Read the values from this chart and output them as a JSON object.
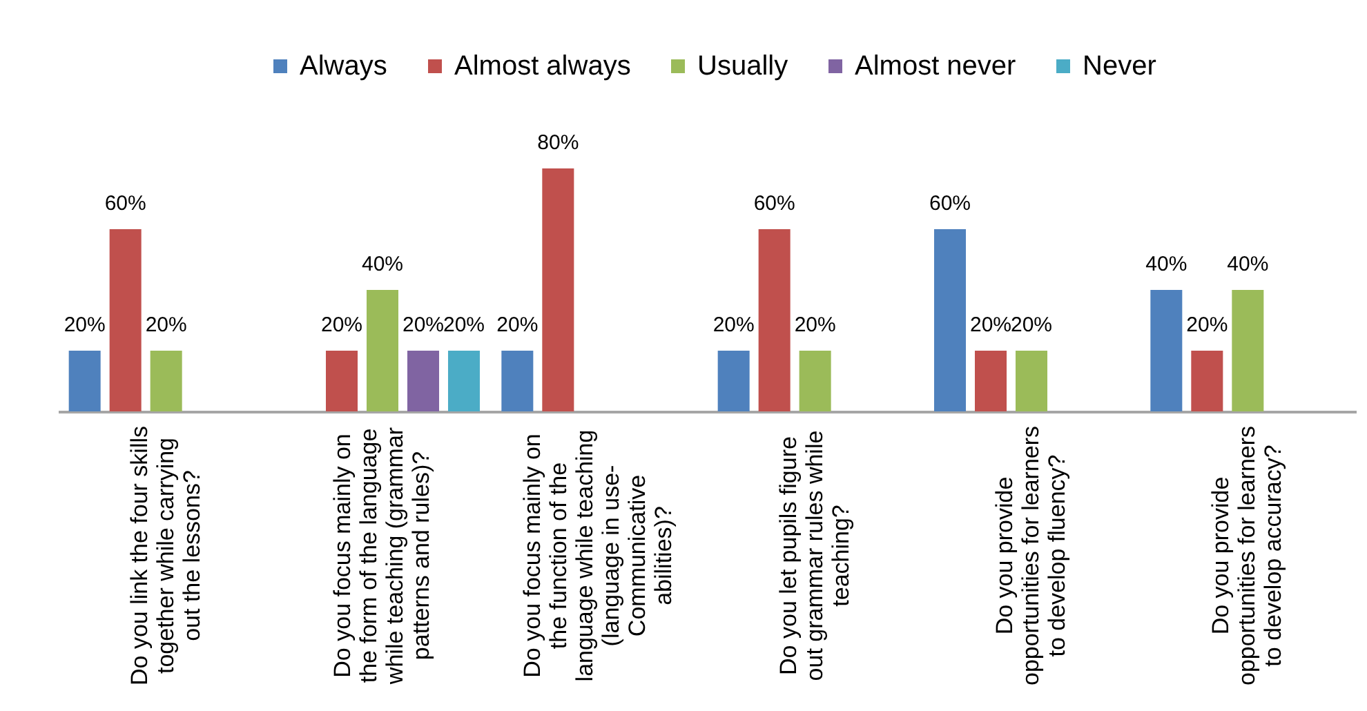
{
  "chart_data": {
    "type": "bar",
    "legend": "top",
    "categories": [
      "Do you link the four skills\ntogether while carrying\nout the lessons?",
      "Do you focus mainly on\nthe form of the language\nwhile teaching (grammar\npatterns and rules)?",
      "Do you focus mainly on\nthe function of the\nlanguage while teaching\n(language in use-\nCommunicative\nabilities)?",
      "Do you let pupils figure\nout grammar rules while\nteaching?",
      "Do you provide\nopportunities for learners\nto develop fluency?",
      "Do you provide\nopportunities for learners\nto develop accuracy?"
    ],
    "series": [
      {
        "name": "Always",
        "color": "#4f81bd",
        "values": [
          20,
          null,
          20,
          20,
          60,
          40
        ],
        "value_labels": [
          "20%",
          null,
          "20%",
          "20%",
          "60%",
          "40%"
        ]
      },
      {
        "name": "Almost always",
        "color": "#c0504d",
        "values": [
          60,
          20,
          80,
          60,
          20,
          20
        ],
        "value_labels": [
          "60%",
          "20%",
          "80%",
          "60%",
          "20%",
          "20%"
        ]
      },
      {
        "name": "Usually",
        "color": "#9bbb59",
        "values": [
          20,
          40,
          null,
          20,
          20,
          40
        ],
        "value_labels": [
          "20%",
          "40%",
          null,
          "20%",
          "20%",
          "40%"
        ]
      },
      {
        "name": "Almost never",
        "color": "#8064a2",
        "values": [
          null,
          20,
          null,
          null,
          null,
          null
        ],
        "value_labels": [
          null,
          "20%",
          null,
          null,
          null,
          null
        ]
      },
      {
        "name": "Never",
        "color": "#4bacc6",
        "values": [
          null,
          20,
          null,
          null,
          null,
          null
        ],
        "value_labels": [
          null,
          "20%",
          null,
          null,
          null,
          null
        ]
      }
    ]
  }
}
